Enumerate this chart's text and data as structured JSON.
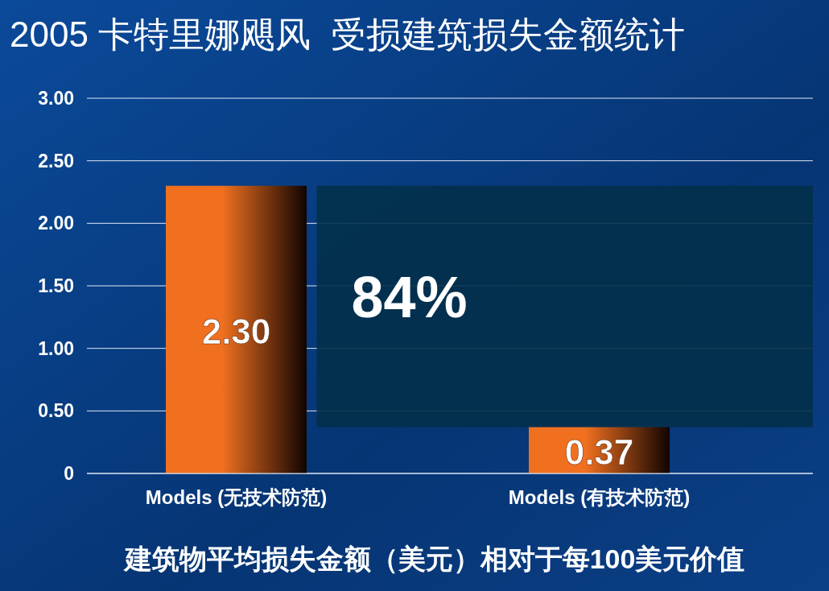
{
  "chart_data": {
    "type": "bar",
    "title": "2005 卡特里娜飓风  受损建筑损失金额统计",
    "xlabel": "建筑物平均损失金额（美元）相对于每100美元价值",
    "categories": [
      "Models (无技术防范)",
      "Models (有技术防范)"
    ],
    "values": [
      2.3,
      0.37
    ],
    "value_labels": [
      "2.30",
      "0.37"
    ],
    "color": "#f07020",
    "ylim": [
      0,
      3
    ],
    "yticks": [
      0,
      {
        "value": 0.5,
        "label": "0.50"
      },
      {
        "value": 1,
        "label": "1.00"
      },
      {
        "value": 1.5,
        "label": "1.50"
      },
      {
        "value": 2,
        "label": "2.00"
      },
      {
        "value": 2.5,
        "label": "2.50"
      },
      {
        "value": 3,
        "label": "3.00"
      }
    ],
    "grid": "y",
    "annotations": [
      "84%"
    ]
  }
}
